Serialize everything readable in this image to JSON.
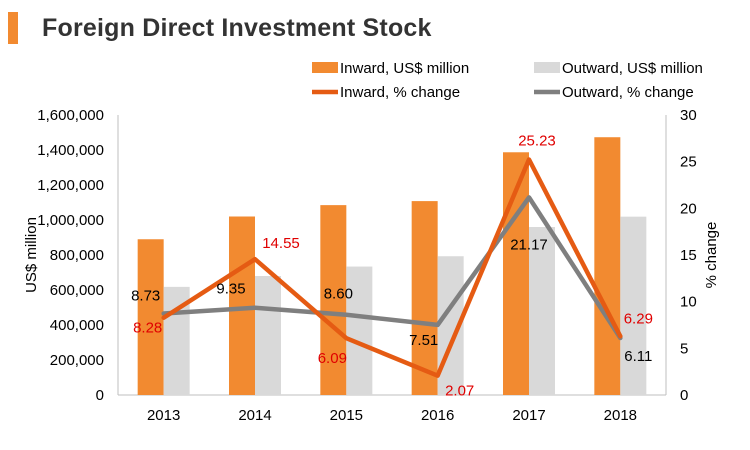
{
  "title": "Foreign Direct Investment Stock",
  "chart_data": {
    "type": "bar",
    "combo": "bar+line",
    "categories": [
      "2013",
      "2014",
      "2015",
      "2016",
      "2017",
      "2018"
    ],
    "bar_series": [
      {
        "name": "Inward, US$ million",
        "values": [
          890000,
          1020000,
          1085000,
          1108000,
          1387000,
          1473000
        ],
        "color": "#f28a30"
      },
      {
        "name": "Outward, US$ million",
        "values": [
          618000,
          680000,
          734000,
          793000,
          960000,
          1019000
        ],
        "color": "#d9d9d9"
      }
    ],
    "line_series": [
      {
        "name": "Inward, % change",
        "values": [
          8.28,
          14.55,
          6.09,
          2.07,
          25.23,
          6.29
        ],
        "labels": [
          "8.28",
          "14.55",
          "6.09",
          "2.07",
          "25.23",
          "6.29"
        ],
        "color": "#e55b13",
        "label_color": "#e00000"
      },
      {
        "name": "Outward, % change",
        "values": [
          8.73,
          9.35,
          8.6,
          7.51,
          21.17,
          6.11
        ],
        "labels": [
          "8.73",
          "9.35",
          "8.60",
          "7.51",
          "21.17",
          "6.11"
        ],
        "color": "#7f7f7f",
        "label_color": "#000000"
      }
    ],
    "ylabel": "US$ million",
    "y2label": "% change",
    "ylim": [
      0,
      1600000
    ],
    "y2lim": [
      0,
      30
    ],
    "yticks": [
      "0",
      "200,000",
      "400,000",
      "600,000",
      "800,000",
      "1,000,000",
      "1,200,000",
      "1,400,000",
      "1,600,000"
    ],
    "y2ticks": [
      "0",
      "5",
      "10",
      "15",
      "20",
      "25",
      "30"
    ],
    "grid": false,
    "legend": "top"
  }
}
